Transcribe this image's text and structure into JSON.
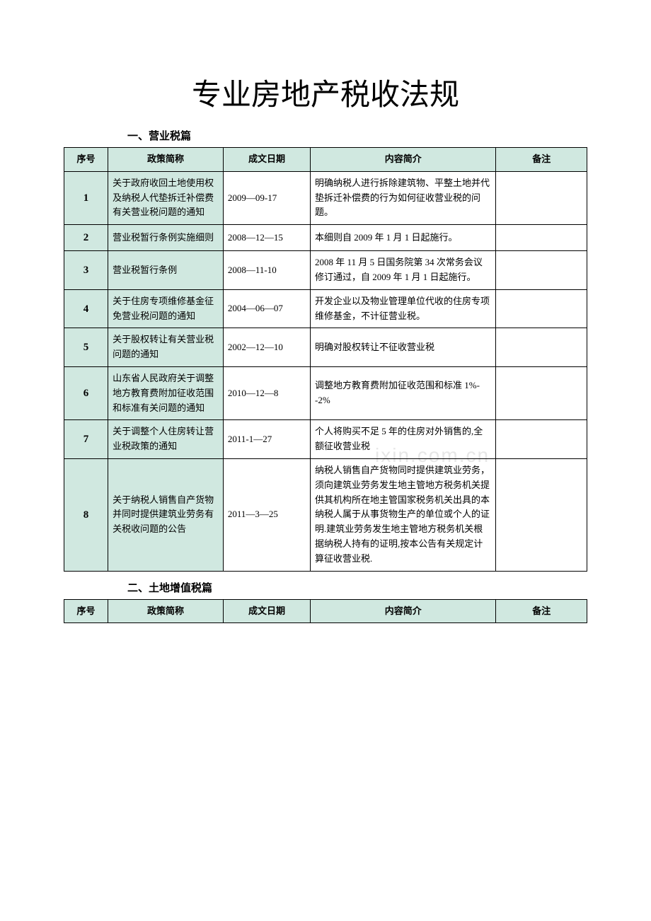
{
  "title": "专业房地产税收法规",
  "watermark_left": "www.z",
  "watermark_right": "ixin.com.cn",
  "section1": {
    "heading": "一、营业税篇",
    "headers": [
      "序号",
      "政策简称",
      "成文日期",
      "内容简介",
      "备注"
    ],
    "rows": [
      {
        "seq": "1",
        "name": "关于政府收回土地使用权及纳税人代垫拆迁补偿费有关营业税问题的通知",
        "date": "2009—09-17",
        "content": "明确纳税人进行拆除建筑物、平整土地并代垫拆迁补偿费的行为如何征收营业税的问题。",
        "note": ""
      },
      {
        "seq": "2",
        "name": "营业税暂行条例实施细则",
        "date": "2008—12—15",
        "content": "本细则自 2009 年 1 月 1 日起施行。",
        "note": ""
      },
      {
        "seq": "3",
        "name": "营业税暂行条例",
        "date": "2008—11-10",
        "content": "2008 年 11 月 5 日国务院第 34 次常务会议修订通过，自 2009 年 1 月 1 日起施行。",
        "note": ""
      },
      {
        "seq": "4",
        "name": "关于住房专项维修基金征免营业税问题的通知",
        "date": "2004—06—07",
        "content": "开发企业以及物业管理单位代收的住房专项维修基金，不计征营业税。",
        "note": ""
      },
      {
        "seq": "5",
        "name": "关于股权转让有关营业税问题的通知",
        "date": "2002—12—10",
        "content": "明确对股权转让不征收营业税",
        "note": ""
      },
      {
        "seq": "6",
        "name": "山东省人民政府关于调整地方教育费附加征收范围和标准有关问题的通知",
        "date": "2010—12—8",
        "content": "调整地方教育费附加征收范围和标准 1%--2%",
        "note": ""
      },
      {
        "seq": "7",
        "name": "关于调整个人住房转让营业税政策的通知",
        "date": "2011-1—27",
        "content": "个人将购买不足 5 年的住房对外销售的,全额征收营业税",
        "note": ""
      },
      {
        "seq": "8",
        "name": "关于纳税人销售自产货物并同时提供建筑业劳务有关税收问题的公告",
        "date": "2011—3—25",
        "content": "纳税人销售自产货物同时提供建筑业劳务， 须向建筑业劳务发生地主管地方税务机关提供其机构所在地主管国家税务机关出具的本纳税人属于从事货物生产的单位或个人的证明.建筑业劳务发生地主管地方税务机关根据纳税人持有的证明,按本公告有关规定计算征收营业税.",
        "note": ""
      }
    ]
  },
  "section2": {
    "heading": "二、土地增值税篇",
    "headers": [
      "序号",
      "政策简称",
      "成文日期",
      "内容简介",
      "备注"
    ]
  },
  "colors": {
    "header_bg": "#d0e8e0",
    "border": "#000000",
    "watermark": "#e7e7e7",
    "background": "#ffffff"
  }
}
